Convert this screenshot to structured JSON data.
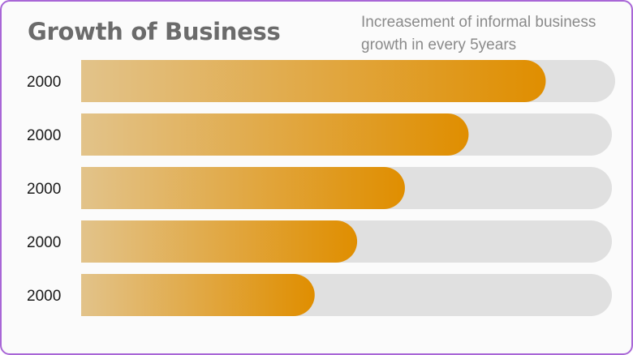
{
  "chart_data": {
    "type": "bar",
    "orientation": "horizontal",
    "title": "Growth of Business",
    "subtitle": "Increasement of informal business growth in every 5years",
    "categories": [
      "2000",
      "2000",
      "2000",
      "2000",
      "2000"
    ],
    "values": [
      0.87,
      0.73,
      0.61,
      0.52,
      0.44
    ],
    "xlim": [
      0,
      1
    ],
    "grid": false,
    "legend": "none",
    "colors": {
      "bar_start": "#e2c38a",
      "bar_end": "#e08e00",
      "track": "#e0e0e0",
      "border": "#a866d6",
      "title": "#6b6b6b",
      "subtitle": "#8a8a8a"
    }
  }
}
